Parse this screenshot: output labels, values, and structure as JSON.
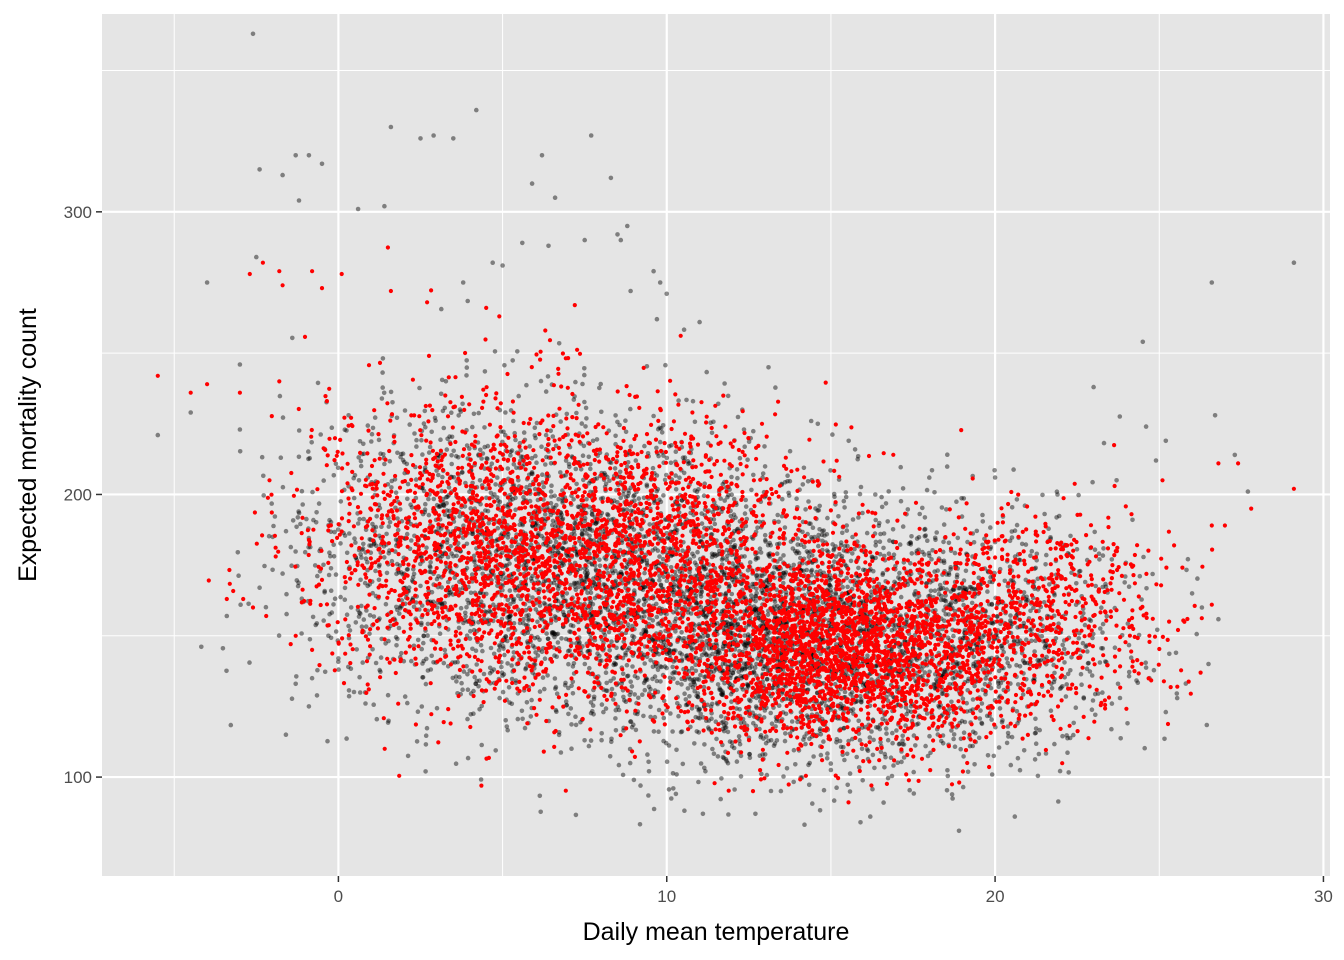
{
  "chart_data": {
    "type": "scatter",
    "xlabel": "Daily mean temperature",
    "ylabel": "Expected mortality count",
    "xlim": [
      -7.2,
      30.2
    ],
    "ylim": [
      65,
      370
    ],
    "x_ticks": [
      0,
      10,
      20,
      30
    ],
    "x_tick_labels": [
      "0",
      "10",
      "20",
      "30"
    ],
    "y_ticks": [
      100,
      200,
      300
    ],
    "y_tick_labels": [
      "100",
      "200",
      "300"
    ],
    "grid": true,
    "legend": "none",
    "colors": {
      "panel_background": "#e5e5e5",
      "grid": "#ffffff",
      "observed_points": "#000000",
      "fitted_points": "#ff0000"
    },
    "series": [
      {
        "color": "#000000",
        "opacity": 0.45,
        "points": [
          [
            -2.6,
            363
          ],
          [
            4.2,
            336
          ],
          [
            1.6,
            330
          ],
          [
            2.5,
            326
          ],
          [
            2.9,
            327
          ],
          [
            3.5,
            326
          ],
          [
            7.7,
            327
          ],
          [
            6.2,
            320
          ],
          [
            8.3,
            312
          ],
          [
            6.6,
            305
          ],
          [
            5.9,
            310
          ],
          [
            -1.3,
            320
          ],
          [
            -0.9,
            320
          ],
          [
            -2.4,
            315
          ],
          [
            -1.7,
            313
          ],
          [
            -0.5,
            317
          ],
          [
            -1.2,
            304
          ],
          [
            1.4,
            302
          ],
          [
            0.6,
            301
          ],
          [
            8.8,
            295
          ],
          [
            8.5,
            292
          ],
          [
            8.6,
            290
          ],
          [
            7.5,
            290
          ],
          [
            6.4,
            288
          ],
          [
            5.6,
            289
          ],
          [
            4.7,
            282
          ],
          [
            5.0,
            281
          ],
          [
            3.8,
            275
          ],
          [
            9.6,
            279
          ],
          [
            9.8,
            275
          ],
          [
            10.0,
            271
          ],
          [
            9.7,
            262
          ],
          [
            11.0,
            261
          ],
          [
            8.9,
            272
          ],
          [
            -4.0,
            275
          ],
          [
            -2.5,
            284
          ],
          [
            -3.0,
            246
          ],
          [
            -3.0,
            223
          ],
          [
            -5.5,
            221
          ],
          [
            -4.5,
            229
          ],
          [
            29.1,
            282
          ],
          [
            26.6,
            275
          ],
          [
            24.5,
            254
          ],
          [
            23.0,
            238
          ],
          [
            26.7,
            228
          ],
          [
            24.6,
            224
          ],
          [
            25.2,
            219
          ],
          [
            24.9,
            212
          ],
          [
            27.7,
            201
          ],
          [
            13.1,
            245
          ],
          [
            12.3,
            230
          ],
          [
            14.4,
            226
          ],
          [
            14.6,
            225
          ],
          [
            10.8,
            233
          ],
          [
            20.0,
            206
          ],
          [
            21.9,
            200
          ],
          [
            23.7,
            205
          ],
          [
            26.0,
            165
          ],
          [
            26.5,
            140
          ],
          [
            25.2,
            123
          ],
          [
            24.7,
            135
          ],
          [
            20.6,
            86
          ],
          [
            18.9,
            81
          ],
          [
            16.2,
            86
          ],
          [
            15.9,
            84
          ],
          [
            11.1,
            87
          ],
          [
            12.7,
            87
          ],
          [
            10.2,
            96
          ],
          [
            9.0,
            99
          ],
          [
            9.2,
            97
          ],
          [
            -1.6,
            115
          ],
          [
            -0.9,
            125
          ],
          [
            -0.8,
            135
          ],
          [
            -1.3,
            133
          ],
          [
            0.3,
            139
          ],
          [
            0.0,
            142
          ],
          [
            -3.4,
            157
          ],
          [
            -2.4,
            167
          ],
          [
            -2.0,
            185
          ],
          [
            -1.7,
            172
          ],
          [
            27.3,
            214
          ],
          [
            26.3,
            160
          ]
        ],
        "clusters": [
          {
            "x_mean": 8.0,
            "x_sd": 3.8,
            "y_mean": 172,
            "y_sd": 26,
            "n": 2200
          },
          {
            "x_mean": 14.5,
            "x_sd": 3.2,
            "y_mean": 148,
            "y_sd": 22,
            "n": 2400
          },
          {
            "x_mean": 3.5,
            "x_sd": 2.6,
            "y_mean": 185,
            "y_sd": 28,
            "n": 700
          },
          {
            "x_mean": 20.5,
            "x_sd": 2.2,
            "y_mean": 150,
            "y_sd": 22,
            "n": 500
          }
        ]
      },
      {
        "color": "#ff0000",
        "opacity": 1,
        "points": [
          [
            -5.5,
            242
          ],
          [
            -4.5,
            236
          ],
          [
            -4.0,
            239
          ],
          [
            -2.7,
            278
          ],
          [
            -2.3,
            282
          ],
          [
            -1.8,
            279
          ],
          [
            -1.7,
            274
          ],
          [
            -0.8,
            279
          ],
          [
            -0.5,
            273
          ],
          [
            0.1,
            278
          ],
          [
            -3.4,
            163
          ],
          [
            -3.0,
            236
          ],
          [
            -2.1,
            205
          ],
          [
            -1.8,
            240
          ],
          [
            2.7,
            268
          ],
          [
            1.6,
            272
          ],
          [
            4.5,
            266
          ],
          [
            4.9,
            263
          ],
          [
            7.2,
            267
          ],
          [
            6.3,
            258
          ],
          [
            27.8,
            195
          ],
          [
            29.1,
            202
          ],
          [
            27.4,
            211
          ],
          [
            26.8,
            211
          ],
          [
            26.6,
            189
          ],
          [
            27.0,
            189
          ],
          [
            26.6,
            161
          ],
          [
            25.1,
            205
          ],
          [
            24.7,
            150
          ],
          [
            25.3,
            155
          ],
          [
            -2.9,
            163
          ],
          [
            -2.6,
            160
          ],
          [
            -2.2,
            157
          ],
          [
            -1.3,
            150
          ],
          [
            -0.8,
            145
          ]
        ],
        "clusters": [
          {
            "x_mean": 8.0,
            "x_sd": 3.4,
            "y_mean": 178,
            "y_sd": 24,
            "n": 2300
          },
          {
            "x_mean": 15.5,
            "x_sd": 2.6,
            "y_mean": 145,
            "y_sd": 17,
            "n": 2300
          },
          {
            "x_mean": 3.0,
            "x_sd": 2.2,
            "y_mean": 182,
            "y_sd": 27,
            "n": 650
          },
          {
            "x_mean": 21.5,
            "x_sd": 2.0,
            "y_mean": 158,
            "y_sd": 19,
            "n": 550
          }
        ]
      }
    ]
  }
}
